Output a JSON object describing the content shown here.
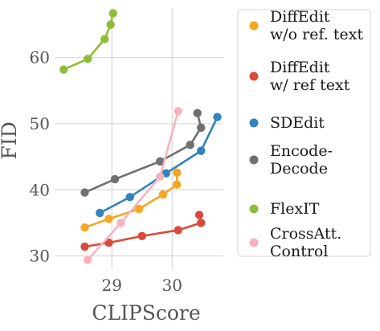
{
  "chart_data": {
    "type": "scatter",
    "xlabel": "CLIPScore",
    "ylabel": "FID",
    "xlim": [
      28.05,
      30.85
    ],
    "ylim": [
      28.0,
      67.5
    ],
    "xticks": [
      29,
      30
    ],
    "yticks": [
      30,
      40,
      50,
      60
    ],
    "grid": true,
    "legend_position": "right",
    "series": [
      {
        "name": "DiffEdit\nw/o ref. text",
        "color": "#f5a623",
        "points": [
          [
            28.55,
            34.3
          ],
          [
            28.95,
            35.6
          ],
          [
            29.45,
            37.1
          ],
          [
            29.85,
            39.3
          ],
          [
            30.08,
            40.8
          ],
          [
            30.08,
            42.6
          ]
        ]
      },
      {
        "name": "DiffEdit\nw/ ref text",
        "color": "#d94a3a",
        "points": [
          [
            28.55,
            31.4
          ],
          [
            28.95,
            32.0
          ],
          [
            29.5,
            33.0
          ],
          [
            30.1,
            33.9
          ],
          [
            30.48,
            35.0
          ],
          [
            30.45,
            36.2
          ]
        ]
      },
      {
        "name": "SDEdit",
        "color": "#3182bd",
        "points": [
          [
            28.8,
            36.5
          ],
          [
            29.3,
            38.9
          ],
          [
            29.9,
            42.5
          ],
          [
            30.48,
            45.9
          ],
          [
            30.75,
            51.0
          ]
        ]
      },
      {
        "name": "Encode-\nDecode",
        "color": "#707070",
        "points": [
          [
            28.55,
            39.6
          ],
          [
            29.05,
            41.6
          ],
          [
            29.8,
            44.3
          ],
          [
            30.3,
            46.8
          ],
          [
            30.48,
            49.4
          ],
          [
            30.42,
            51.6
          ]
        ]
      },
      {
        "name": "FlexIT",
        "color": "#8fbd3a",
        "points": [
          [
            28.2,
            58.2
          ],
          [
            28.6,
            59.8
          ],
          [
            28.88,
            62.8
          ],
          [
            28.98,
            65.0
          ],
          [
            29.02,
            66.7
          ]
        ]
      },
      {
        "name": "CrossAtt.\nControl",
        "color": "#f7b3bd",
        "points": [
          [
            28.6,
            29.4
          ],
          [
            29.15,
            35.0
          ],
          [
            29.8,
            42.0
          ],
          [
            30.1,
            51.9
          ]
        ]
      }
    ]
  }
}
